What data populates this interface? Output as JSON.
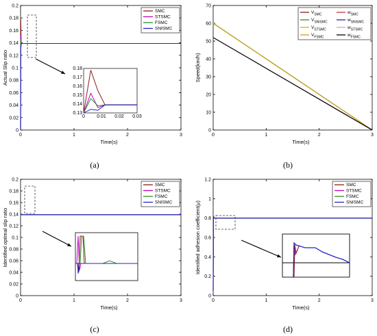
{
  "chart_data": [
    {
      "type": "line",
      "caption": "(a)",
      "xlabel": "Time(s)",
      "ylabel": "Actual Slip ratio",
      "xlim": [
        0,
        3
      ],
      "ylim": [
        0,
        0.2
      ],
      "xticks": [
        "0",
        "1",
        "2",
        "3"
      ],
      "yticks": [
        "0",
        "0.02",
        "0.04",
        "0.06",
        "0.08",
        "0.1",
        "0.12",
        "0.14",
        "0.16",
        "0.18",
        "0.2"
      ],
      "legend_position": "top-right",
      "series": [
        {
          "name": "SMC",
          "color": "#8b1a1a",
          "x": [
            0,
            0.004,
            0.008,
            0.012,
            3
          ],
          "y": [
            0,
            0.178,
            0.155,
            0.139,
            0.139
          ]
        },
        {
          "name": "STSMC",
          "color": "#c000c0",
          "x": [
            0,
            0.004,
            0.008,
            0.012,
            3
          ],
          "y": [
            0,
            0.152,
            0.136,
            0.139,
            0.139
          ]
        },
        {
          "name": "FSMC",
          "color": "#2e8b2e",
          "x": [
            0,
            0.004,
            0.008,
            0.012,
            3
          ],
          "y": [
            0,
            0.146,
            0.138,
            0.139,
            0.139
          ]
        },
        {
          "name": "SNISMC",
          "color": "#2222cc",
          "x": [
            0,
            0.004,
            0.008,
            0.012,
            3
          ],
          "y": [
            0,
            0.134,
            0.133,
            0.139,
            0.139
          ]
        }
      ],
      "inset": {
        "xlim": [
          0,
          0.03
        ],
        "ylim": [
          0.13,
          0.18
        ],
        "xticks": [
          "0",
          "0.01",
          "0.02",
          "0.03"
        ],
        "yticks": [
          "0.13",
          "0.14",
          "0.15",
          "0.16",
          "0.17",
          "0.18"
        ]
      }
    },
    {
      "type": "line",
      "caption": "(b)",
      "xlabel": "Time(s)",
      "ylabel": "Speed(km/h)",
      "xlim": [
        0,
        3
      ],
      "ylim": [
        0,
        70
      ],
      "xticks": [
        "0",
        "1",
        "2",
        "3"
      ],
      "yticks": [
        "0",
        "10",
        "20",
        "30",
        "40",
        "50",
        "60",
        "70"
      ],
      "legend_position": "top-right",
      "legend_columns": 2,
      "series": [
        {
          "name": "V",
          "sub": "SMC",
          "color": "#8b1a1a",
          "x": [
            0,
            3
          ],
          "y": [
            60,
            0
          ]
        },
        {
          "name": "w",
          "sub": "SMC",
          "color": "#cc3333",
          "x": [
            0,
            3
          ],
          "y": [
            52,
            0
          ]
        },
        {
          "name": "V",
          "sub": "SNISMC",
          "color": "#2e8b2e",
          "x": [
            0,
            3
          ],
          "y": [
            60,
            0
          ]
        },
        {
          "name": "w",
          "sub": "SNISMC",
          "color": "#1f1fbf",
          "x": [
            0,
            3
          ],
          "y": [
            52,
            0
          ]
        },
        {
          "name": "V",
          "sub": "STSMC",
          "color": "#d4b000",
          "x": [
            0,
            3
          ],
          "y": [
            60,
            0
          ]
        },
        {
          "name": "w",
          "sub": "STSMC",
          "color": "#e09cc8",
          "x": [
            0,
            3
          ],
          "y": [
            52,
            0
          ]
        },
        {
          "name": "V",
          "sub": "FSMC",
          "color": "#c8a020",
          "x": [
            0,
            3
          ],
          "y": [
            60,
            0
          ]
        },
        {
          "name": "w",
          "sub": "FSMC",
          "color": "#000000",
          "x": [
            0,
            3
          ],
          "y": [
            52,
            0
          ]
        }
      ]
    },
    {
      "type": "line",
      "caption": "(c)",
      "xlabel": "Time(s)",
      "ylabel": "Identified optimal slip ratio",
      "xlim": [
        0,
        3
      ],
      "ylim": [
        0,
        0.2
      ],
      "xticks": [
        "0",
        "1",
        "2",
        "3"
      ],
      "yticks": [
        "0",
        "0.02",
        "0.04",
        "0.06",
        "0.08",
        "0.1",
        "0.12",
        "0.14",
        "0.16",
        "0.18",
        "0.2"
      ],
      "legend_position": "top-right",
      "series": [
        {
          "name": "SMC",
          "color": "#8b1a1a",
          "x": [
            0,
            3
          ],
          "y": [
            0.139,
            0.139
          ]
        },
        {
          "name": "STSMC",
          "color": "#c000c0",
          "x": [
            0,
            3
          ],
          "y": [
            0.139,
            0.139
          ]
        },
        {
          "name": "FSMC",
          "color": "#2e8b2e",
          "x": [
            0,
            3
          ],
          "y": [
            0.139,
            0.139
          ]
        },
        {
          "name": "SNISMC",
          "color": "#2222cc",
          "x": [
            0,
            3
          ],
          "y": [
            0.139,
            0.139
          ]
        }
      ],
      "inset": {}
    },
    {
      "type": "line",
      "caption": "(d)",
      "xlabel": "Time(s)",
      "ylabel": "Identified adhesion coefficient(μ)",
      "xlim": [
        0,
        3
      ],
      "ylim": [
        0,
        1.2
      ],
      "xticks": [
        "0",
        "1",
        "2",
        "3"
      ],
      "yticks": [
        "0",
        "0.2",
        "0.4",
        "0.6",
        "0.8",
        "1",
        "1.2"
      ],
      "legend_position": "top-right",
      "series": [
        {
          "name": "SMC",
          "color": "#8b1a1a",
          "x": [
            0,
            0.005,
            0.02,
            3
          ],
          "y": [
            0.05,
            0.82,
            0.8,
            0.8
          ]
        },
        {
          "name": "STSMC",
          "color": "#c000c0",
          "x": [
            0,
            0.005,
            0.02,
            3
          ],
          "y": [
            0.05,
            0.82,
            0.8,
            0.8
          ]
        },
        {
          "name": "FSMC",
          "color": "#2e8b2e",
          "x": [
            0,
            0.005,
            0.02,
            3
          ],
          "y": [
            0.05,
            0.82,
            0.8,
            0.8
          ]
        },
        {
          "name": "SNISMC",
          "color": "#2222cc",
          "x": [
            0,
            0.005,
            0.02,
            3
          ],
          "y": [
            0.05,
            0.82,
            0.8,
            0.8
          ]
        }
      ],
      "inset": {}
    }
  ]
}
